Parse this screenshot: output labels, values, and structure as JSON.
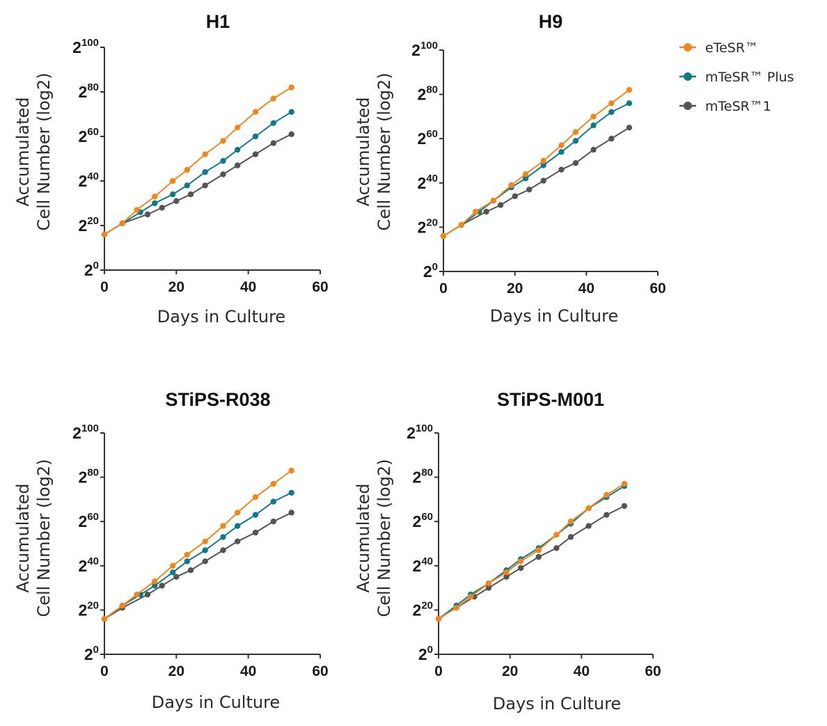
{
  "chart_data": [
    {
      "type": "line",
      "title": "H1",
      "xlabel": "Days in Culture",
      "ylabel_lines": [
        "Accumulated",
        "Cell Number (log2)"
      ],
      "xlim": [
        0,
        60
      ],
      "ylim": [
        0,
        100
      ],
      "xticks": [
        "0",
        "20",
        "40",
        "60"
      ],
      "yticks": [
        {
          "base": "2",
          "exp": "0"
        },
        {
          "base": "2",
          "exp": "20"
        },
        {
          "base": "2",
          "exp": "40"
        },
        {
          "base": "2",
          "exp": "60"
        },
        {
          "base": "2",
          "exp": "80"
        },
        {
          "base": "2",
          "exp": "100"
        }
      ],
      "series": [
        {
          "name": "eTeSR™",
          "x": [
            0,
            5,
            9,
            14,
            19,
            23,
            28,
            33,
            37,
            42,
            47,
            52
          ],
          "y": [
            16,
            21,
            27,
            33,
            40,
            45,
            52,
            58,
            64,
            71,
            77,
            82
          ]
        },
        {
          "name": "mTeSR™ Plus",
          "x": [
            0,
            5,
            10,
            14,
            19,
            23,
            28,
            33,
            37,
            42,
            47,
            52
          ],
          "y": [
            16,
            21,
            26,
            30,
            34,
            38,
            44,
            49,
            54,
            60,
            66,
            71
          ]
        },
        {
          "name": "mTeSR™1",
          "x": [
            0,
            5,
            12,
            16,
            20,
            24,
            28,
            33,
            37,
            42,
            47,
            52
          ],
          "y": [
            16,
            21,
            25,
            28,
            31,
            34,
            38,
            43,
            47,
            52,
            57,
            61
          ]
        }
      ]
    },
    {
      "type": "line",
      "title": "H9",
      "xlabel": "Days in Culture",
      "ylabel_lines": [
        "Accumulated",
        "Cell Number (log2)"
      ],
      "xlim": [
        0,
        60
      ],
      "ylim": [
        0,
        100
      ],
      "xticks": [
        "0",
        "20",
        "40",
        "60"
      ],
      "yticks": [
        {
          "base": "2",
          "exp": "0"
        },
        {
          "base": "2",
          "exp": "20"
        },
        {
          "base": "2",
          "exp": "40"
        },
        {
          "base": "2",
          "exp": "60"
        },
        {
          "base": "2",
          "exp": "80"
        },
        {
          "base": "2",
          "exp": "100"
        }
      ],
      "series": [
        {
          "name": "eTeSR™",
          "x": [
            0,
            5,
            9,
            14,
            19,
            23,
            28,
            33,
            37,
            42,
            47,
            52
          ],
          "y": [
            16,
            21,
            27,
            32,
            39,
            44,
            50,
            57,
            63,
            70,
            76,
            82
          ]
        },
        {
          "name": "mTeSR™ Plus",
          "x": [
            0,
            5,
            10,
            14,
            19,
            23,
            28,
            33,
            37,
            42,
            47,
            52
          ],
          "y": [
            16,
            21,
            27,
            32,
            38,
            42,
            48,
            54,
            59,
            66,
            72,
            76
          ]
        },
        {
          "name": "mTeSR™1",
          "x": [
            0,
            5,
            12,
            16,
            20,
            24,
            28,
            33,
            37,
            42,
            47,
            52
          ],
          "y": [
            16,
            21,
            27,
            30,
            34,
            37,
            41,
            46,
            49,
            55,
            60,
            65
          ]
        }
      ]
    },
    {
      "type": "line",
      "title": "STiPS-R038",
      "xlabel": "Days in Culture",
      "ylabel_lines": [
        "Accumulated",
        "Cell Number (log2)"
      ],
      "xlim": [
        0,
        60
      ],
      "ylim": [
        0,
        100
      ],
      "xticks": [
        "0",
        "20",
        "40",
        "60"
      ],
      "yticks": [
        {
          "base": "2",
          "exp": "0"
        },
        {
          "base": "2",
          "exp": "20"
        },
        {
          "base": "2",
          "exp": "40"
        },
        {
          "base": "2",
          "exp": "60"
        },
        {
          "base": "2",
          "exp": "80"
        },
        {
          "base": "2",
          "exp": "100"
        }
      ],
      "series": [
        {
          "name": "eTeSR™",
          "x": [
            0,
            5,
            9,
            14,
            19,
            23,
            28,
            33,
            37,
            42,
            47,
            52
          ],
          "y": [
            16,
            22,
            27,
            33,
            40,
            45,
            51,
            58,
            64,
            71,
            77,
            83
          ]
        },
        {
          "name": "mTeSR™ Plus",
          "x": [
            0,
            5,
            10,
            14,
            19,
            23,
            28,
            33,
            37,
            42,
            47,
            52
          ],
          "y": [
            16,
            22,
            27,
            31,
            37,
            42,
            47,
            53,
            58,
            63,
            69,
            73
          ]
        },
        {
          "name": "mTeSR™1",
          "x": [
            0,
            5,
            12,
            16,
            20,
            24,
            28,
            33,
            37,
            42,
            47,
            52
          ],
          "y": [
            16,
            21,
            27,
            31,
            35,
            38,
            42,
            47,
            51,
            55,
            60,
            64
          ]
        }
      ]
    },
    {
      "type": "line",
      "title": "STiPS-M001",
      "xlabel": "Days in Culture",
      "ylabel_lines": [
        "Accumulated",
        "Cell Number (log2)"
      ],
      "xlim": [
        0,
        60
      ],
      "ylim": [
        0,
        100
      ],
      "xticks": [
        "0",
        "20",
        "40",
        "60"
      ],
      "yticks": [
        {
          "base": "2",
          "exp": "0"
        },
        {
          "base": "2",
          "exp": "20"
        },
        {
          "base": "2",
          "exp": "40"
        },
        {
          "base": "2",
          "exp": "60"
        },
        {
          "base": "2",
          "exp": "80"
        },
        {
          "base": "2",
          "exp": "100"
        }
      ],
      "series": [
        {
          "name": "eTeSR™",
          "x": [
            0,
            5,
            9,
            14,
            19,
            23,
            28,
            33,
            37,
            42,
            47,
            52
          ],
          "y": [
            16,
            21,
            26,
            32,
            37,
            42,
            47,
            54,
            60,
            66,
            72,
            77
          ]
        },
        {
          "name": "mTeSR™ Plus",
          "x": [
            0,
            5,
            9,
            14,
            19,
            23,
            28,
            33,
            37,
            42,
            47,
            52
          ],
          "y": [
            16,
            22,
            27,
            32,
            38,
            43,
            48,
            54,
            59,
            66,
            71,
            76
          ]
        },
        {
          "name": "mTeSR™1",
          "x": [
            0,
            5,
            10,
            14,
            19,
            23,
            28,
            33,
            37,
            42,
            47,
            52
          ],
          "y": [
            16,
            21,
            26,
            30,
            35,
            39,
            44,
            48,
            53,
            58,
            63,
            67
          ]
        }
      ]
    }
  ],
  "legend": {
    "placement": "top-right",
    "items": [
      {
        "label": "eTeSR™",
        "color": "#F0871E"
      },
      {
        "label": "mTeSR™ Plus",
        "color": "#0F7A8A"
      },
      {
        "label": "mTeSR™1",
        "color": "#545454"
      }
    ]
  }
}
